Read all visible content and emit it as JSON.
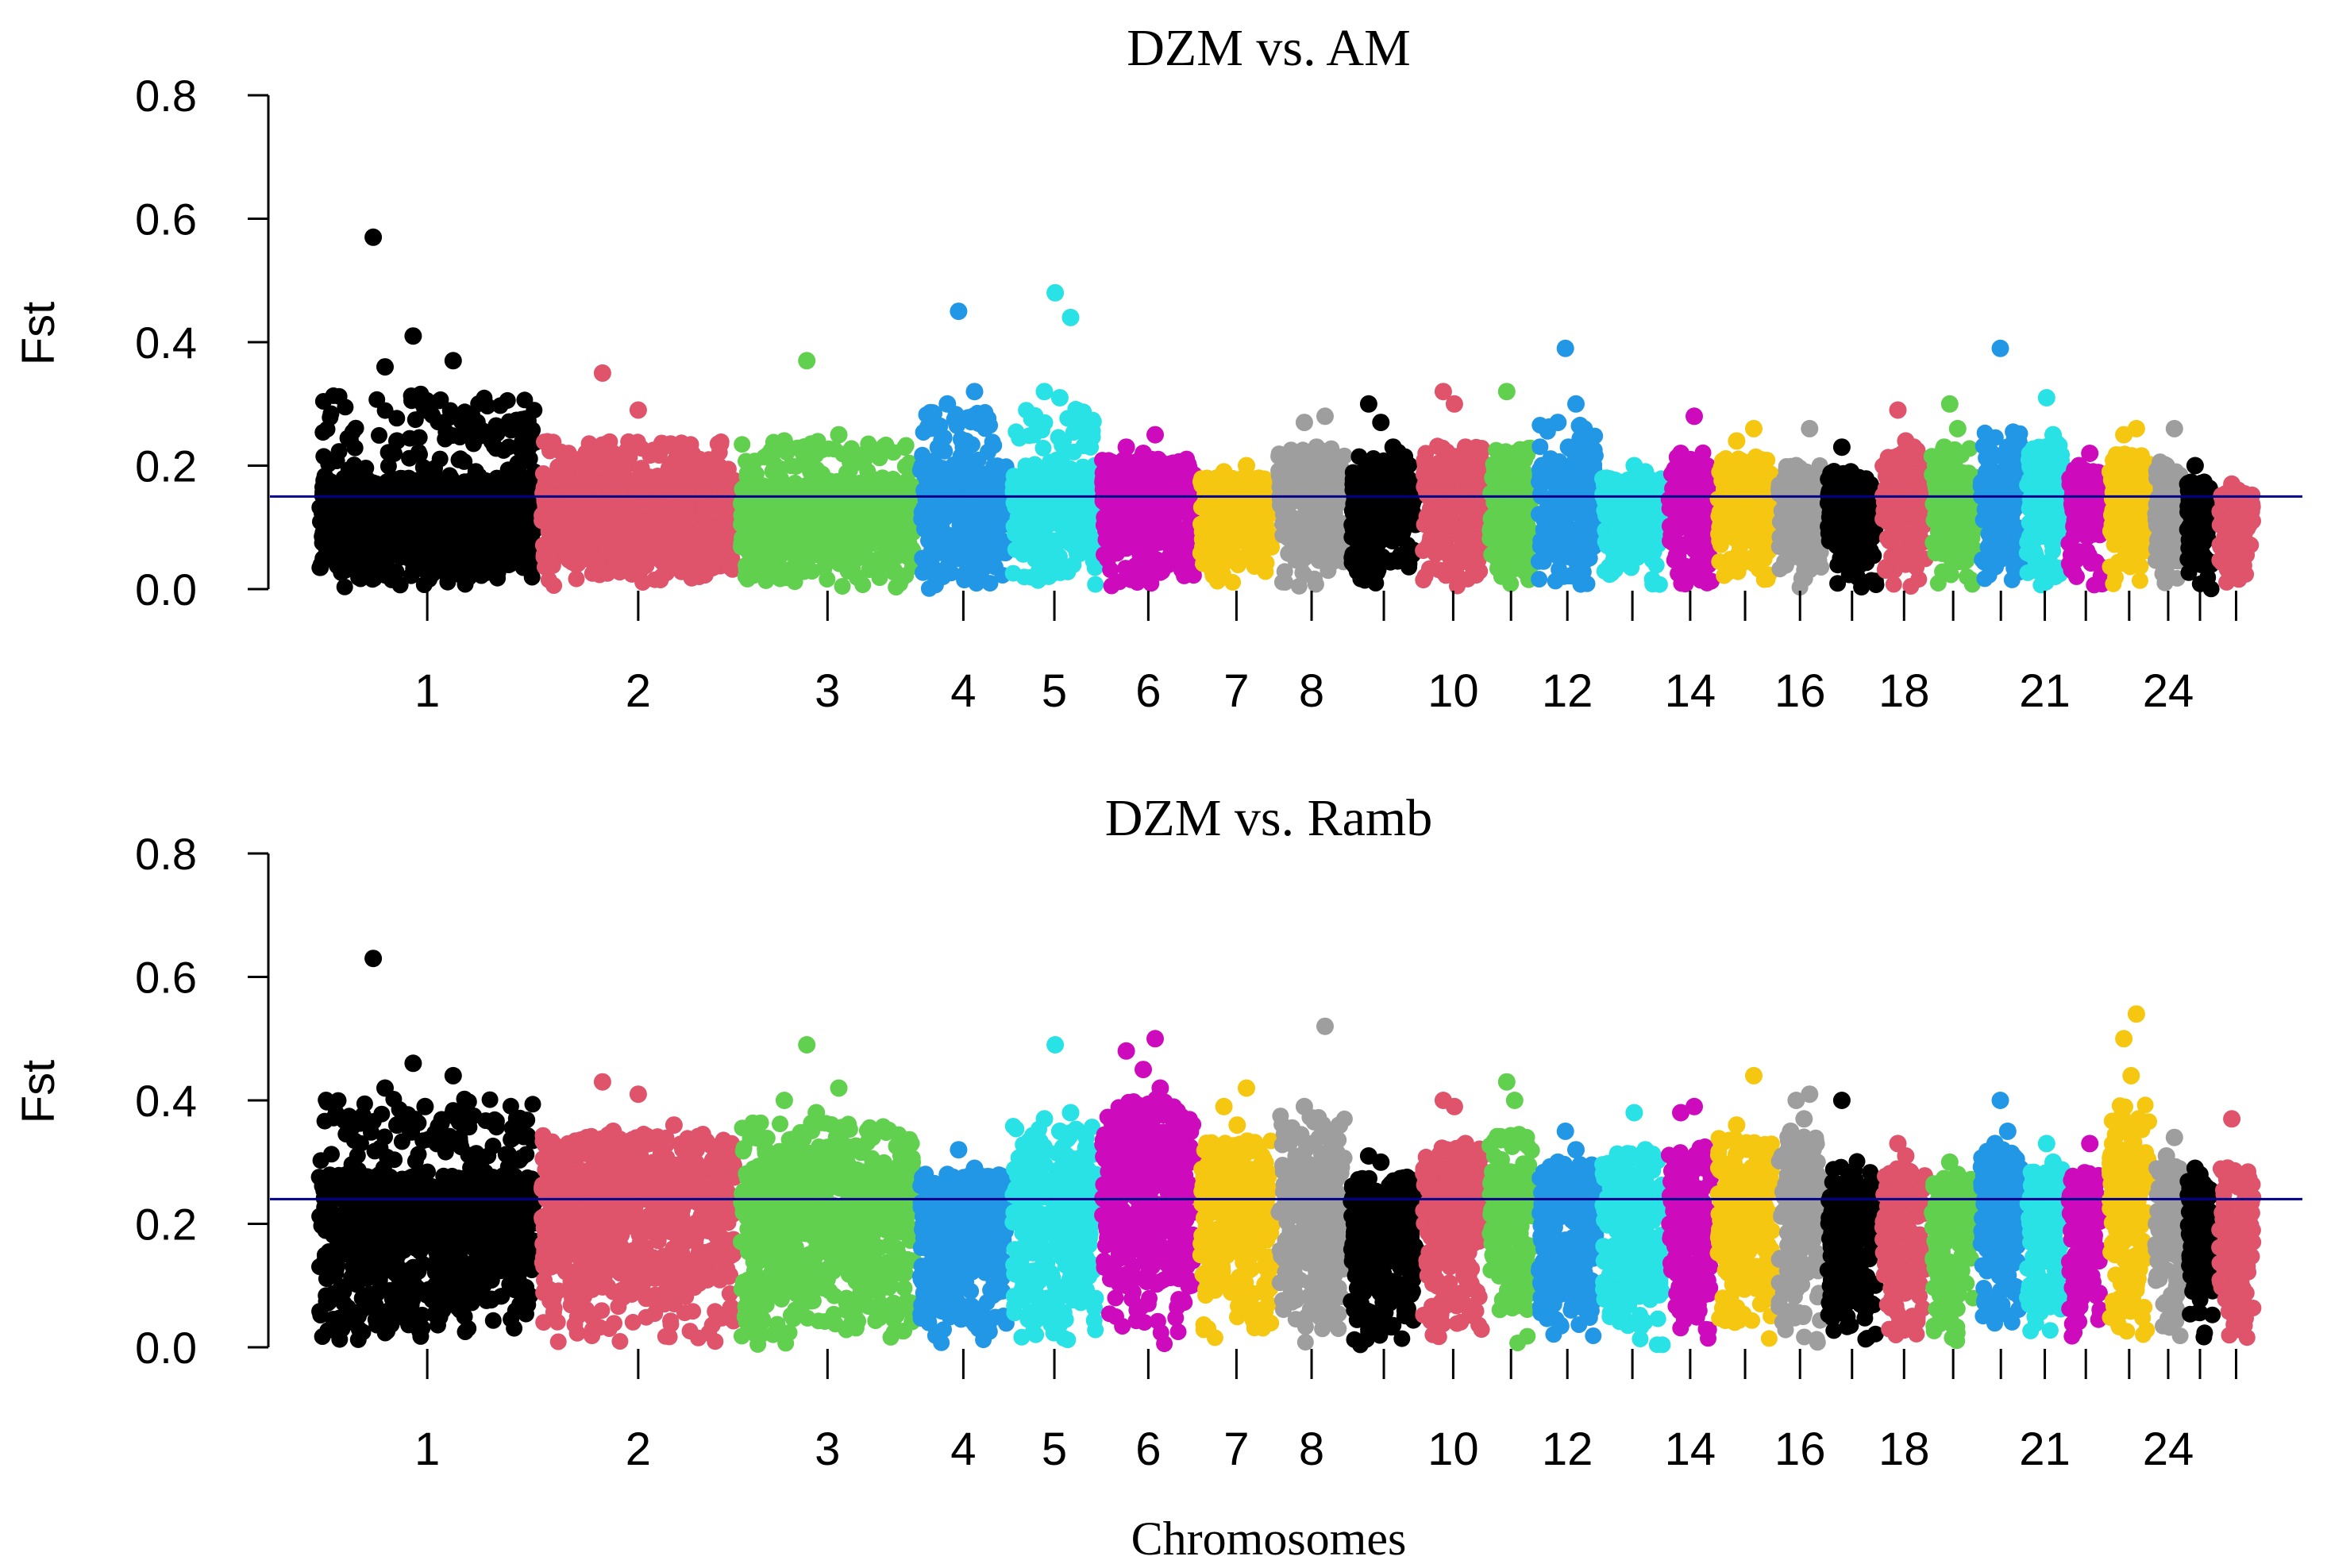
{
  "chart_data": [
    {
      "type": "scatter",
      "subtype": "manhattan",
      "title": "DZM vs. AM",
      "ylabel": "Fst",
      "xlabel": "",
      "ylim": [
        0,
        0.8
      ],
      "yticks": [
        "0.0",
        "0.2",
        "0.4",
        "0.6",
        "0.8"
      ],
      "threshold": 0.15,
      "threshold_color": "#00008b",
      "chromosome_labels": [
        "1",
        "2",
        "3",
        "4",
        "5",
        "6",
        "7",
        "8",
        "10",
        "12",
        "14",
        "16",
        "18",
        "21",
        "24"
      ],
      "chromosomes": [
        {
          "chr": 1,
          "max": 0.57,
          "mid": 0.18,
          "tops": [
            0.57,
            0.41,
            0.37,
            0.36,
            0.29,
            0.25,
            0.24
          ]
        },
        {
          "chr": 2,
          "max": 0.35,
          "mid": 0.18,
          "tops": [
            0.35,
            0.29,
            0.23,
            0.22
          ]
        },
        {
          "chr": 3,
          "max": 0.37,
          "mid": 0.17,
          "tops": [
            0.37,
            0.25,
            0.24,
            0.23
          ]
        },
        {
          "chr": 4,
          "max": 0.45,
          "mid": 0.2,
          "tops": [
            0.45,
            0.32,
            0.3,
            0.23
          ]
        },
        {
          "chr": 5,
          "max": 0.48,
          "mid": 0.19,
          "tops": [
            0.48,
            0.44,
            0.32,
            0.31,
            0.25
          ]
        },
        {
          "chr": 6,
          "max": 0.25,
          "mid": 0.19,
          "tops": [
            0.25,
            0.23,
            0.22
          ]
        },
        {
          "chr": 7,
          "max": 0.2,
          "mid": 0.17,
          "tops": [
            0.2,
            0.19
          ]
        },
        {
          "chr": 8,
          "max": 0.28,
          "mid": 0.2,
          "tops": [
            0.28,
            0.27,
            0.23,
            0.2
          ]
        },
        {
          "chr": 9,
          "max": 0.3,
          "mid": 0.18,
          "tops": [
            0.3,
            0.27,
            0.23
          ]
        },
        {
          "chr": 10,
          "max": 0.32,
          "mid": 0.19,
          "tops": [
            0.32,
            0.3,
            0.23
          ]
        },
        {
          "chr": 11,
          "max": 0.32,
          "mid": 0.18,
          "tops": [
            0.32,
            0.22
          ]
        },
        {
          "chr": 12,
          "max": 0.39,
          "mid": 0.2,
          "tops": [
            0.39,
            0.3,
            0.27,
            0.23
          ]
        },
        {
          "chr": 13,
          "max": 0.2,
          "mid": 0.17,
          "tops": [
            0.2,
            0.19
          ]
        },
        {
          "chr": 14,
          "max": 0.28,
          "mid": 0.19,
          "tops": [
            0.28,
            0.22
          ]
        },
        {
          "chr": 15,
          "max": 0.26,
          "mid": 0.19,
          "tops": [
            0.26,
            0.24
          ]
        },
        {
          "chr": 16,
          "max": 0.26,
          "mid": 0.17,
          "tops": [
            0.26,
            0.2
          ]
        },
        {
          "chr": 17,
          "max": 0.23,
          "mid": 0.17,
          "tops": [
            0.23,
            0.19
          ]
        },
        {
          "chr": 18,
          "max": 0.29,
          "mid": 0.19,
          "tops": [
            0.29,
            0.24,
            0.23
          ]
        },
        {
          "chr": 19,
          "max": 0.3,
          "mid": 0.19,
          "tops": [
            0.3,
            0.26,
            0.23
          ]
        },
        {
          "chr": 20,
          "max": 0.39,
          "mid": 0.19,
          "tops": [
            0.39,
            0.23
          ]
        },
        {
          "chr": 21,
          "max": 0.31,
          "mid": 0.2,
          "tops": [
            0.31,
            0.25
          ]
        },
        {
          "chr": 22,
          "max": 0.22,
          "mid": 0.18,
          "tops": [
            0.22,
            0.2
          ]
        },
        {
          "chr": 23,
          "max": 0.26,
          "mid": 0.2,
          "tops": [
            0.26,
            0.25
          ]
        },
        {
          "chr": 24,
          "max": 0.26,
          "mid": 0.18,
          "tops": [
            0.26,
            0.2
          ]
        },
        {
          "chr": 25,
          "max": 0.2,
          "mid": 0.16,
          "tops": [
            0.2
          ]
        },
        {
          "chr": 26,
          "max": 0.17,
          "mid": 0.15,
          "tops": [
            0.17,
            0.16
          ]
        }
      ]
    },
    {
      "type": "scatter",
      "subtype": "manhattan",
      "title": "DZM vs. Ramb",
      "ylabel": "Fst",
      "xlabel": "Chromosomes",
      "ylim": [
        0,
        0.8
      ],
      "yticks": [
        "0.0",
        "0.2",
        "0.4",
        "0.6",
        "0.8"
      ],
      "threshold": 0.24,
      "threshold_color": "#00008b",
      "chromosome_labels": [
        "1",
        "2",
        "3",
        "4",
        "5",
        "6",
        "7",
        "8",
        "10",
        "12",
        "14",
        "16",
        "18",
        "21",
        "24"
      ],
      "chromosomes": [
        {
          "chr": 1,
          "max": 0.63,
          "mid": 0.28,
          "tops": [
            0.63,
            0.46,
            0.44,
            0.42,
            0.39,
            0.38,
            0.36,
            0.33
          ]
        },
        {
          "chr": 2,
          "max": 0.43,
          "mid": 0.3,
          "tops": [
            0.43,
            0.41,
            0.36,
            0.35,
            0.33
          ]
        },
        {
          "chr": 3,
          "max": 0.49,
          "mid": 0.3,
          "tops": [
            0.49,
            0.42,
            0.4,
            0.38,
            0.36
          ]
        },
        {
          "chr": 4,
          "max": 0.32,
          "mid": 0.26,
          "tops": [
            0.32,
            0.29,
            0.28
          ]
        },
        {
          "chr": 5,
          "max": 0.49,
          "mid": 0.29,
          "tops": [
            0.49,
            0.38,
            0.37,
            0.35,
            0.32
          ]
        },
        {
          "chr": 6,
          "max": 0.5,
          "mid": 0.35,
          "tops": [
            0.5,
            0.48,
            0.45,
            0.42,
            0.38
          ]
        },
        {
          "chr": 7,
          "max": 0.42,
          "mid": 0.29,
          "tops": [
            0.42,
            0.39,
            0.36,
            0.33
          ]
        },
        {
          "chr": 8,
          "max": 0.52,
          "mid": 0.3,
          "tops": [
            0.52,
            0.39,
            0.37,
            0.34
          ]
        },
        {
          "chr": 9,
          "max": 0.31,
          "mid": 0.26,
          "tops": [
            0.31,
            0.3
          ]
        },
        {
          "chr": 10,
          "max": 0.4,
          "mid": 0.29,
          "tops": [
            0.4,
            0.39,
            0.33,
            0.32
          ]
        },
        {
          "chr": 11,
          "max": 0.43,
          "mid": 0.3,
          "tops": [
            0.43,
            0.4,
            0.34
          ]
        },
        {
          "chr": 12,
          "max": 0.35,
          "mid": 0.27,
          "tops": [
            0.35,
            0.32,
            0.3
          ]
        },
        {
          "chr": 13,
          "max": 0.38,
          "mid": 0.28,
          "tops": [
            0.38,
            0.32,
            0.3
          ]
        },
        {
          "chr": 14,
          "max": 0.39,
          "mid": 0.29,
          "tops": [
            0.39,
            0.38,
            0.3
          ]
        },
        {
          "chr": 15,
          "max": 0.44,
          "mid": 0.29,
          "tops": [
            0.44,
            0.36,
            0.33
          ]
        },
        {
          "chr": 16,
          "max": 0.41,
          "mid": 0.31,
          "tops": [
            0.41,
            0.4,
            0.37,
            0.35
          ]
        },
        {
          "chr": 17,
          "max": 0.4,
          "mid": 0.25,
          "tops": [
            0.4,
            0.27
          ]
        },
        {
          "chr": 18,
          "max": 0.33,
          "mid": 0.27,
          "tops": [
            0.33,
            0.31
          ]
        },
        {
          "chr": 19,
          "max": 0.3,
          "mid": 0.26,
          "tops": [
            0.3,
            0.28
          ]
        },
        {
          "chr": 20,
          "max": 0.4,
          "mid": 0.28,
          "tops": [
            0.4,
            0.35,
            0.33
          ]
        },
        {
          "chr": 21,
          "max": 0.33,
          "mid": 0.27,
          "tops": [
            0.33,
            0.3
          ]
        },
        {
          "chr": 22,
          "max": 0.33,
          "mid": 0.26,
          "tops": [
            0.33,
            0.27
          ]
        },
        {
          "chr": 23,
          "max": 0.54,
          "mid": 0.32,
          "tops": [
            0.54,
            0.5,
            0.44,
            0.37,
            0.35
          ]
        },
        {
          "chr": 24,
          "max": 0.34,
          "mid": 0.27,
          "tops": [
            0.34,
            0.31
          ]
        },
        {
          "chr": 25,
          "max": 0.29,
          "mid": 0.26,
          "tops": [
            0.29,
            0.28
          ]
        },
        {
          "chr": 26,
          "max": 0.37,
          "mid": 0.25,
          "tops": [
            0.37,
            0.26
          ]
        }
      ]
    }
  ],
  "colors": {
    "palette": [
      "#000000",
      "#df536b",
      "#61d04f",
      "#2297e6",
      "#28e2e5",
      "#cd0bbc",
      "#f5c710",
      "#9e9e9e"
    ],
    "threshold": "#00008b"
  }
}
